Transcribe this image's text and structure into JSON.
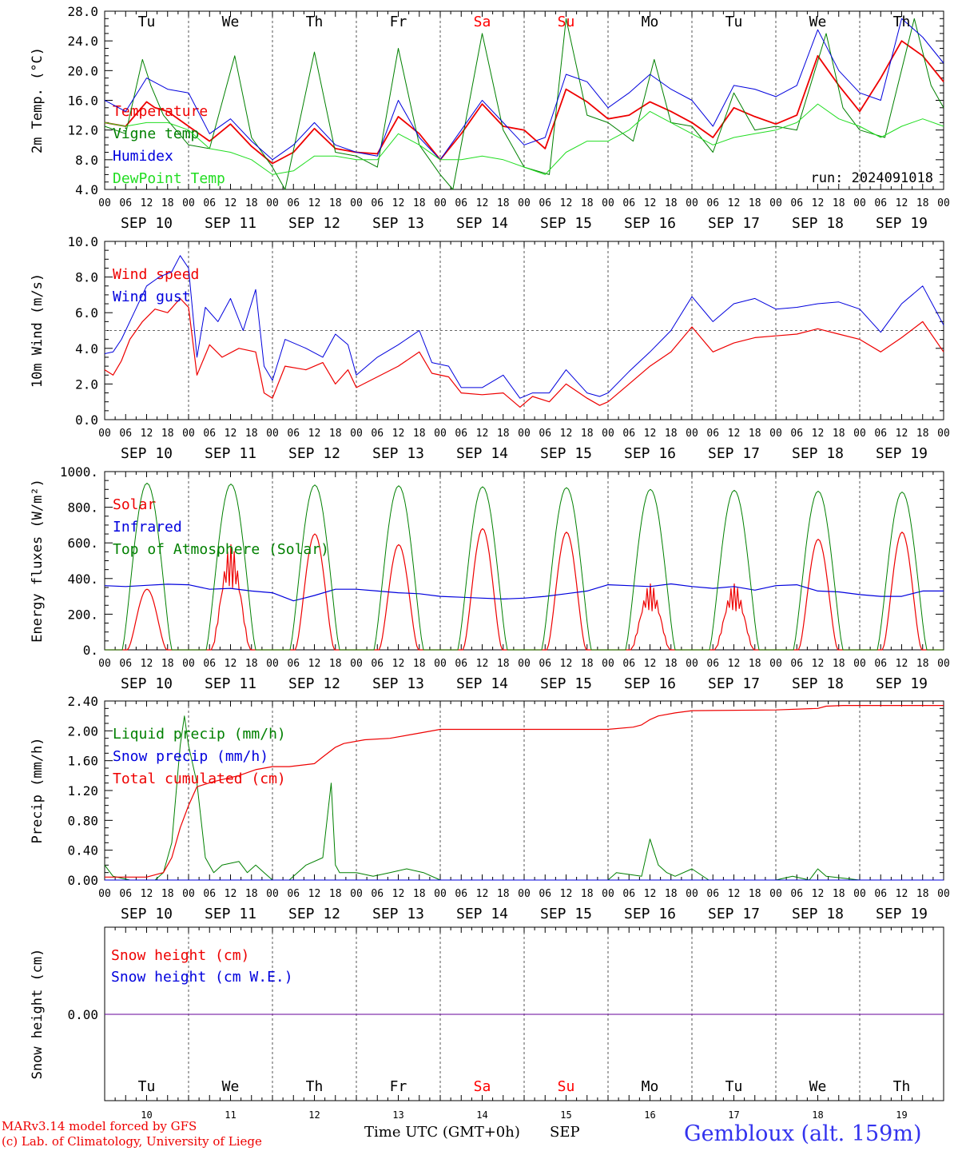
{
  "title": "",
  "colors": {
    "red": "#ee0000",
    "green": "#008000",
    "blue": "#0000dd",
    "lightgreen": "#22dd22",
    "purple": "#660099",
    "dayweekend": "#ff0000"
  },
  "axis": {
    "hour_ticks": [
      "00",
      "06",
      "12",
      "18"
    ],
    "dates": [
      "SEP 10",
      "SEP 11",
      "SEP 12",
      "SEP 13",
      "SEP 14",
      "SEP 15",
      "SEP 16",
      "SEP 17",
      "SEP 18",
      "SEP 19"
    ],
    "days_top": [
      "Tu",
      "We",
      "Th",
      "Fr",
      "Sa",
      "Su",
      "Mo",
      "Tu",
      "We",
      "Th"
    ],
    "days_bottom": [
      "Tu",
      "We",
      "Th",
      "Fr",
      "Sa",
      "Su",
      "Mo",
      "Tu",
      "We",
      "Th"
    ],
    "day_numbers": [
      "10",
      "11",
      "12",
      "13",
      "14",
      "15",
      "16",
      "17",
      "18",
      "19"
    ],
    "weekend_days": [
      4,
      5
    ]
  },
  "footer": {
    "model_line1": "MARv3.14 model forced by GFS",
    "model_line2": "(c) Lab. of Climatology, University of Liege",
    "xlabel": "Time UTC (GMT+0h)",
    "month": "SEP",
    "station": "Gembloux (alt. 159m)"
  },
  "chart_data": [
    {
      "type": "line",
      "ylabel": "2m Temp. (°C)",
      "ylim": [
        4,
        28
      ],
      "yticks": [
        "4.0",
        "8.0",
        "12.0",
        "16.0",
        "20.0",
        "24.0",
        "28.0"
      ],
      "annotation": "run: 2024091018",
      "x_unit": "day offset from SEP 10 00 UTC",
      "series": [
        {
          "name": "Temperature",
          "color": "red",
          "width": 1.8,
          "x": [
            0,
            0.25,
            0.5,
            0.6,
            0.75,
            1,
            1.25,
            1.5,
            1.75,
            2,
            2.25,
            2.5,
            2.75,
            3,
            3.25,
            3.5,
            3.75,
            4,
            4.25,
            4.5,
            4.75,
            5,
            5.25,
            5.5,
            5.75,
            6,
            6.25,
            6.5,
            6.75,
            7,
            7.25,
            7.5,
            7.75,
            8,
            8.25,
            8.5,
            8.75,
            9,
            9.25,
            9.5,
            9.75,
            10
          ],
          "y": [
            13,
            12.5,
            15.8,
            15,
            14.5,
            12.5,
            10.5,
            12.8,
            9.8,
            7.5,
            9,
            12.2,
            9.5,
            9,
            8.8,
            13.8,
            11.5,
            8,
            11.5,
            15.5,
            12.5,
            12,
            9.5,
            17.5,
            15.8,
            13.5,
            14,
            15.8,
            14.5,
            13,
            11,
            15,
            13.8,
            12.8,
            14,
            22,
            18,
            14.5,
            19,
            24,
            22,
            18.5
          ]
        },
        {
          "name": "Vigne temp",
          "color": "green",
          "width": 1,
          "x": [
            0,
            0.25,
            0.45,
            0.55,
            0.7,
            1,
            1.25,
            1.55,
            1.75,
            2,
            2.15,
            2.5,
            2.75,
            3,
            3.25,
            3.5,
            3.75,
            4,
            4.15,
            4.5,
            4.75,
            5,
            5.3,
            5.5,
            5.75,
            6,
            6.3,
            6.55,
            6.75,
            7,
            7.25,
            7.5,
            7.75,
            8,
            8.25,
            8.6,
            8.8,
            9,
            9.3,
            9.65,
            9.85,
            10
          ],
          "y": [
            12.5,
            11.5,
            21.5,
            18,
            14,
            10,
            9.5,
            22,
            11,
            7,
            4,
            22.5,
            9,
            8.5,
            7,
            23,
            10,
            6,
            4,
            25,
            12,
            7,
            6,
            27,
            14,
            13,
            10.5,
            21.5,
            13,
            12.5,
            9,
            17,
            12,
            12.5,
            12,
            25,
            15,
            12,
            11,
            27,
            18,
            15
          ]
        },
        {
          "name": "Humidex",
          "color": "blue",
          "width": 1,
          "x": [
            0,
            0.25,
            0.5,
            0.75,
            1,
            1.25,
            1.5,
            1.75,
            2,
            2.25,
            2.5,
            2.75,
            3,
            3.25,
            3.5,
            3.75,
            4,
            4.25,
            4.5,
            4.75,
            5,
            5.25,
            5.5,
            5.75,
            6,
            6.25,
            6.5,
            6.75,
            7,
            7.25,
            7.5,
            7.75,
            8,
            8.25,
            8.5,
            8.75,
            9,
            9.25,
            9.5,
            9.75,
            10
          ],
          "y": [
            16,
            14.5,
            19,
            17.5,
            17,
            11.5,
            13.5,
            10.5,
            8,
            10,
            13,
            10,
            9,
            8.5,
            16,
            11,
            8,
            12,
            16,
            13,
            10,
            11,
            19.5,
            18.5,
            15,
            17,
            19.5,
            17.5,
            16,
            12.5,
            18,
            17.5,
            16.5,
            18,
            25.5,
            20,
            17,
            16,
            27,
            24.5,
            21
          ]
        },
        {
          "name": "DewPoint Temp",
          "color": "lightgreen",
          "width": 1,
          "x": [
            0,
            0.25,
            0.5,
            0.75,
            1,
            1.25,
            1.5,
            1.75,
            2,
            2.25,
            2.5,
            2.75,
            3,
            3.25,
            3.5,
            3.75,
            4,
            4.25,
            4.5,
            4.75,
            5,
            5.25,
            5.5,
            5.75,
            6,
            6.25,
            6.5,
            6.75,
            7,
            7.25,
            7.5,
            7.75,
            8,
            8.25,
            8.5,
            8.75,
            9,
            9.25,
            9.5,
            9.75,
            10
          ],
          "y": [
            13,
            12.5,
            13,
            13,
            12,
            9.5,
            9,
            8,
            6,
            6.5,
            8.5,
            8.5,
            8,
            8,
            11.5,
            10,
            8,
            8,
            8.5,
            8,
            7,
            6,
            9,
            10.5,
            10.5,
            12,
            14.5,
            13,
            11.5,
            10,
            11,
            11.5,
            12,
            13,
            15.5,
            13.5,
            12.5,
            11,
            12.5,
            13.5,
            12.5
          ]
        }
      ]
    },
    {
      "type": "line",
      "ylabel": "10m Wind (m/s)",
      "ylim": [
        0,
        10
      ],
      "yticks": [
        "0.0",
        "2.0",
        "4.0",
        "6.0",
        "8.0",
        "10.0"
      ],
      "reference_line": 5,
      "series": [
        {
          "name": "Wind speed",
          "color": "red",
          "width": 1.2,
          "x": [
            0,
            0.1,
            0.2,
            0.3,
            0.45,
            0.6,
            0.75,
            0.9,
            1,
            1.1,
            1.25,
            1.4,
            1.6,
            1.8,
            1.9,
            2,
            2.15,
            2.4,
            2.6,
            2.75,
            2.9,
            3,
            3.25,
            3.5,
            3.75,
            3.9,
            4.1,
            4.25,
            4.5,
            4.75,
            4.95,
            5.1,
            5.3,
            5.5,
            5.75,
            5.9,
            6,
            6.25,
            6.5,
            6.75,
            7,
            7.25,
            7.5,
            7.75,
            8,
            8.25,
            8.5,
            8.75,
            9,
            9.25,
            9.5,
            9.75,
            10
          ],
          "y": [
            2.8,
            2.5,
            3.3,
            4.5,
            5.5,
            6.2,
            6,
            6.8,
            6.3,
            2.5,
            4.2,
            3.5,
            4,
            3.8,
            1.5,
            1.2,
            3,
            2.8,
            3.2,
            2,
            2.8,
            1.8,
            2.4,
            3,
            3.8,
            2.6,
            2.4,
            1.5,
            1.4,
            1.5,
            0.7,
            1.3,
            1,
            2,
            1.2,
            0.8,
            1,
            2,
            3,
            3.8,
            5.2,
            3.8,
            4.3,
            4.6,
            4.7,
            4.8,
            5.1,
            4.8,
            4.5,
            3.8,
            4.6,
            5.5,
            3.8
          ]
        },
        {
          "name": "Wind gust",
          "color": "blue",
          "width": 1,
          "x": [
            0,
            0.1,
            0.2,
            0.35,
            0.5,
            0.65,
            0.8,
            0.9,
            1,
            1.1,
            1.2,
            1.35,
            1.5,
            1.65,
            1.8,
            1.9,
            2,
            2.15,
            2.4,
            2.6,
            2.75,
            2.9,
            3,
            3.25,
            3.5,
            3.75,
            3.9,
            4.1,
            4.25,
            4.5,
            4.75,
            4.95,
            5.1,
            5.3,
            5.5,
            5.75,
            5.9,
            6,
            6.25,
            6.5,
            6.75,
            7,
            7.25,
            7.5,
            7.75,
            8,
            8.25,
            8.5,
            8.75,
            9,
            9.25,
            9.5,
            9.75,
            10
          ],
          "y": [
            3.7,
            3.8,
            4.5,
            6,
            7.5,
            8,
            8.3,
            9.2,
            8.5,
            3.5,
            6.3,
            5.5,
            6.8,
            5,
            7.3,
            3,
            2.2,
            4.5,
            4,
            3.5,
            4.8,
            4.2,
            2.5,
            3.5,
            4.2,
            5,
            3.2,
            3,
            1.8,
            1.8,
            2.5,
            1.2,
            1.5,
            1.5,
            2.8,
            1.5,
            1.3,
            1.5,
            2.7,
            3.8,
            5,
            6.9,
            5.5,
            6.5,
            6.8,
            6.2,
            6.3,
            6.5,
            6.6,
            6.2,
            4.9,
            6.5,
            7.5,
            5.3
          ]
        }
      ]
    },
    {
      "type": "line",
      "ylabel": "Energy fluxes (W/m²)",
      "ylim": [
        0,
        1000
      ],
      "yticks": [
        "0.",
        "200.",
        "400.",
        "600.",
        "800.",
        "1000."
      ],
      "series": [
        {
          "name": "Solar",
          "color": "red",
          "width": 1.2,
          "day_peaks": [
            340,
            590,
            650,
            590,
            680,
            660,
            370,
            370,
            620,
            660
          ]
        },
        {
          "name": "Infrared",
          "color": "blue",
          "width": 1.2,
          "x": [
            0,
            0.25,
            0.5,
            0.75,
            1,
            1.25,
            1.5,
            1.75,
            2,
            2.25,
            2.5,
            2.75,
            3,
            3.25,
            3.5,
            3.75,
            4,
            4.25,
            4.5,
            4.75,
            5,
            5.25,
            5.5,
            5.75,
            6,
            6.25,
            6.5,
            6.75,
            7,
            7.25,
            7.5,
            7.75,
            8,
            8.25,
            8.5,
            8.75,
            9,
            9.25,
            9.5,
            9.75,
            10
          ],
          "y": [
            360,
            355,
            362,
            368,
            365,
            340,
            345,
            330,
            320,
            275,
            305,
            340,
            340,
            330,
            320,
            315,
            300,
            295,
            290,
            285,
            290,
            300,
            315,
            330,
            365,
            360,
            355,
            370,
            355,
            345,
            355,
            335,
            360,
            365,
            330,
            325,
            310,
            300,
            300,
            330,
            330
          ]
        },
        {
          "name": "Top of Atmosphere (Solar)",
          "color": "green",
          "width": 1,
          "day_peaks": [
            935,
            930,
            925,
            920,
            915,
            910,
            900,
            895,
            890,
            885
          ]
        }
      ]
    },
    {
      "type": "line",
      "ylabel": "Precip (mm/h)",
      "ylim": [
        0,
        2.4
      ],
      "yticks": [
        "0.00",
        "0.40",
        "0.80",
        "1.20",
        "1.60",
        "2.00",
        "2.40"
      ],
      "series": [
        {
          "name": "Liquid precip (mm/h)",
          "color": "green",
          "width": 1,
          "x": [
            0,
            0.1,
            0.3,
            0.5,
            0.6,
            0.7,
            0.8,
            0.9,
            0.95,
            1,
            1.1,
            1.2,
            1.3,
            1.4,
            1.6,
            1.7,
            1.8,
            1.9,
            2,
            2.2,
            2.4,
            2.6,
            2.7,
            2.75,
            2.8,
            3,
            3.2,
            3.4,
            3.6,
            3.8,
            4,
            6,
            6.1,
            6.4,
            6.5,
            6.6,
            6.7,
            6.8,
            7,
            7.2,
            8,
            8.2,
            8.4,
            8.5,
            8.6,
            9,
            10
          ],
          "y": [
            0.2,
            0.05,
            0,
            0,
            0,
            0.1,
            0.5,
            1.8,
            2.2,
            1.8,
            1.3,
            0.3,
            0.1,
            0.2,
            0.25,
            0.1,
            0.2,
            0.1,
            0,
            0,
            0.2,
            0.3,
            1.3,
            0.2,
            0.1,
            0.1,
            0.05,
            0.1,
            0.15,
            0.1,
            0,
            0,
            0.1,
            0.05,
            0.55,
            0.2,
            0.1,
            0.05,
            0.15,
            0,
            0,
            0.05,
            0,
            0.15,
            0.05,
            0,
            0
          ]
        },
        {
          "name": "Snow precip (mm/h)",
          "color": "blue",
          "width": 1,
          "x": [
            0,
            10
          ],
          "y": [
            0,
            0
          ]
        },
        {
          "name": "Total cumulated (cm)",
          "color": "red",
          "width": 1.2,
          "x": [
            0,
            0.5,
            0.7,
            0.8,
            0.9,
            1,
            1.1,
            1.3,
            1.6,
            1.8,
            2,
            2.2,
            2.5,
            2.6,
            2.75,
            2.85,
            3.1,
            3.4,
            3.7,
            4,
            5,
            6,
            6.3,
            6.4,
            6.5,
            6.6,
            6.8,
            7,
            8,
            8.5,
            8.6,
            8.8,
            9,
            10
          ],
          "y": [
            0.04,
            0.04,
            0.1,
            0.3,
            0.7,
            1,
            1.25,
            1.32,
            1.4,
            1.48,
            1.52,
            1.52,
            1.56,
            1.65,
            1.78,
            1.83,
            1.88,
            1.9,
            1.96,
            2.02,
            2.02,
            2.02,
            2.05,
            2.08,
            2.15,
            2.2,
            2.24,
            2.27,
            2.28,
            2.3,
            2.33,
            2.34,
            2.34,
            2.34
          ]
        }
      ]
    },
    {
      "type": "line",
      "ylabel": "Snow height (cm)",
      "yticks": [
        "0.00"
      ],
      "series": [
        {
          "name": "Snow height (cm)",
          "color": "red",
          "width": 1,
          "x": [
            0,
            10
          ],
          "y": [
            0,
            0
          ]
        },
        {
          "name": "Snow height (cm W.E.)",
          "color": "blue",
          "width": 1,
          "x": [
            0,
            10
          ],
          "y": [
            0,
            0
          ]
        }
      ]
    }
  ]
}
